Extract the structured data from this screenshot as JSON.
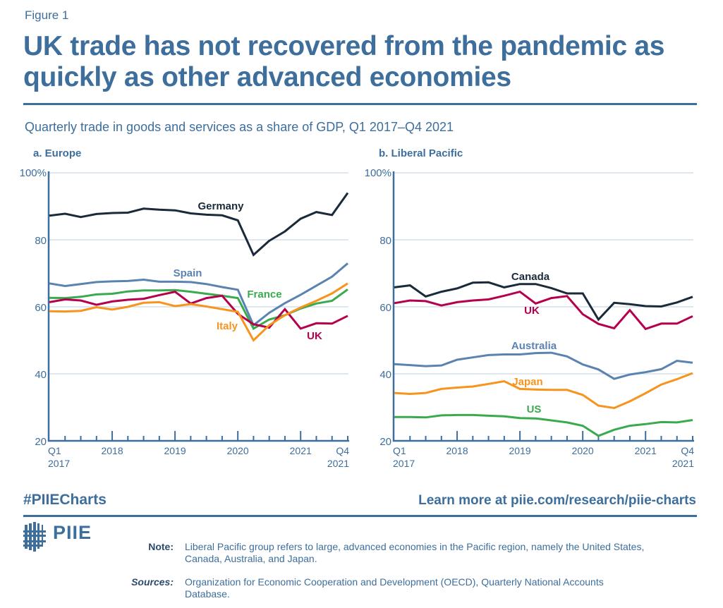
{
  "figure_label": "Figure 1",
  "title": "UK trade has not recovered from the pandemic as quickly as other advanced economies",
  "subtitle": "Quarterly trade in goods and services as a share of GDP, Q1 2017–Q4 2021",
  "footer": {
    "hashtag": "#PIIECharts",
    "learn_more": "Learn more at piie.com/research/piie-charts",
    "logo_text": "PIIE",
    "note_label": "Note:",
    "note_text": "Liberal Pacific group refers to large, advanced economies in the Pacific region, namely the United States, Canada, Australia, and Japan.",
    "sources_label": "Sources:",
    "sources_text": "Organization for Economic Cooperation and Development (OECD), Quarterly National Accounts Database."
  },
  "colors": {
    "brand": "#3d6e9c",
    "grid": "#d3dfeb",
    "Germany": "#1b2a3a",
    "Canada": "#1b2a3a",
    "Spain": "#5b83b1",
    "Australia": "#5b83b1",
    "France": "#3aaa4f",
    "US": "#3aaa4f",
    "UK": "#b5004d",
    "Italy": "#f7941d",
    "Japan": "#f7941d"
  },
  "chart_data": [
    {
      "type": "line",
      "title": "a. Europe",
      "xlabel": "",
      "ylabel": "",
      "ylim": [
        20,
        100
      ],
      "yticks": [
        20,
        40,
        60,
        80,
        100
      ],
      "ytick_labels": [
        "20",
        "40",
        "60",
        "80",
        "100%"
      ],
      "grid": true,
      "x": [
        "Q1 2017",
        "Q2 2017",
        "Q3 2017",
        "Q4 2017",
        "Q1 2018",
        "Q2 2018",
        "Q3 2018",
        "Q4 2018",
        "Q1 2019",
        "Q2 2019",
        "Q3 2019",
        "Q4 2019",
        "Q1 2020",
        "Q2 2020",
        "Q3 2020",
        "Q4 2020",
        "Q1 2021",
        "Q2 2021",
        "Q3 2021",
        "Q4 2021"
      ],
      "xtick_labels": [
        {
          "index": 0,
          "lines": [
            "Q1",
            "2017"
          ]
        },
        {
          "index": 4,
          "lines": [
            "2018"
          ]
        },
        {
          "index": 8,
          "lines": [
            "2019"
          ]
        },
        {
          "index": 12,
          "lines": [
            "2020"
          ]
        },
        {
          "index": 16,
          "lines": [
            "2021"
          ]
        },
        {
          "index": 19,
          "lines": [
            "Q4",
            "2021"
          ]
        }
      ],
      "series": [
        {
          "name": "Germany",
          "label": "Germany",
          "values": [
            87.2,
            87.8,
            86.8,
            87.7,
            88.0,
            88.1,
            89.3,
            89.0,
            88.8,
            87.9,
            87.5,
            87.3,
            85.8,
            75.5,
            79.7,
            82.5,
            86.3,
            88.3,
            87.4,
            94.0
          ]
        },
        {
          "name": "Spain",
          "label": "Spain",
          "values": [
            67.0,
            66.2,
            66.8,
            67.4,
            67.6,
            67.7,
            68.1,
            67.5,
            67.5,
            67.4,
            66.8,
            65.9,
            65.1,
            54.5,
            58.2,
            61.1,
            63.6,
            66.3,
            69.0,
            73.0
          ]
        },
        {
          "name": "France",
          "label": "France",
          "values": [
            62.7,
            62.6,
            63.0,
            63.7,
            63.9,
            64.6,
            64.9,
            64.9,
            65.0,
            64.5,
            63.9,
            63.3,
            62.6,
            53.5,
            56.2,
            57.5,
            59.5,
            61.0,
            61.8,
            65.2
          ]
        },
        {
          "name": "UK",
          "label": "UK",
          "values": [
            61.4,
            62.2,
            61.9,
            60.6,
            61.6,
            62.1,
            62.4,
            63.5,
            64.5,
            61.0,
            62.6,
            63.3,
            57.9,
            54.8,
            53.8,
            59.3,
            53.5,
            55.1,
            55.0,
            57.3
          ]
        },
        {
          "name": "Italy",
          "label": "Italy",
          "values": [
            58.7,
            58.6,
            58.8,
            59.9,
            59.2,
            60.0,
            61.2,
            61.4,
            60.2,
            60.8,
            60.1,
            59.3,
            58.5,
            50.0,
            54.5,
            57.5,
            59.8,
            61.8,
            64.0,
            67.0
          ]
        }
      ]
    },
    {
      "type": "line",
      "title": "b. Liberal Pacific",
      "xlabel": "",
      "ylabel": "",
      "ylim": [
        20,
        100
      ],
      "yticks": [
        20,
        40,
        60,
        80,
        100
      ],
      "ytick_labels": [
        "20",
        "40",
        "60",
        "80",
        "100%"
      ],
      "grid": true,
      "x": [
        "Q1 2017",
        "Q2 2017",
        "Q3 2017",
        "Q4 2017",
        "Q1 2018",
        "Q2 2018",
        "Q3 2018",
        "Q4 2018",
        "Q1 2019",
        "Q2 2019",
        "Q3 2019",
        "Q4 2019",
        "Q1 2020",
        "Q2 2020",
        "Q3 2020",
        "Q4 2020",
        "Q1 2021",
        "Q2 2021",
        "Q3 2021",
        "Q4 2021"
      ],
      "xtick_labels": [
        {
          "index": 0,
          "lines": [
            "Q1",
            "2017"
          ]
        },
        {
          "index": 4,
          "lines": [
            "2018"
          ]
        },
        {
          "index": 8,
          "lines": [
            "2019"
          ]
        },
        {
          "index": 12,
          "lines": [
            "2020"
          ]
        },
        {
          "index": 16,
          "lines": [
            "2021"
          ]
        },
        {
          "index": 19,
          "lines": [
            "Q4",
            "2021"
          ]
        }
      ],
      "series": [
        {
          "name": "Canada",
          "label": "Canada",
          "values": [
            65.8,
            66.4,
            63.1,
            64.5,
            65.5,
            67.2,
            67.3,
            65.8,
            66.8,
            66.8,
            65.6,
            64.0,
            64.0,
            56.2,
            61.2,
            60.8,
            60.2,
            60.1,
            61.3,
            63.0
          ]
        },
        {
          "name": "UK",
          "label": "UK",
          "values": [
            61.1,
            61.9,
            61.7,
            60.4,
            61.4,
            61.9,
            62.2,
            63.3,
            64.5,
            61.0,
            62.6,
            63.2,
            57.8,
            54.9,
            53.6,
            59.0,
            53.4,
            55.0,
            55.0,
            57.2
          ]
        },
        {
          "name": "Australia",
          "label": "Australia",
          "values": [
            42.9,
            42.6,
            42.3,
            42.5,
            44.2,
            44.9,
            45.6,
            45.8,
            45.8,
            46.2,
            46.3,
            45.2,
            42.8,
            41.3,
            38.5,
            39.8,
            40.5,
            41.4,
            43.9,
            43.3
          ]
        },
        {
          "name": "Japan",
          "label": "Japan",
          "values": [
            34.3,
            34.0,
            34.3,
            35.5,
            35.9,
            36.2,
            37.0,
            37.8,
            35.5,
            35.3,
            35.2,
            35.2,
            33.7,
            30.5,
            29.8,
            31.8,
            34.2,
            36.8,
            38.4,
            40.2
          ]
        },
        {
          "name": "US",
          "label": "US",
          "values": [
            27.1,
            27.1,
            27.0,
            27.6,
            27.7,
            27.7,
            27.5,
            27.3,
            26.8,
            26.7,
            26.1,
            25.5,
            24.5,
            21.5,
            23.3,
            24.5,
            25.0,
            25.6,
            25.5,
            26.2
          ]
        }
      ]
    }
  ]
}
